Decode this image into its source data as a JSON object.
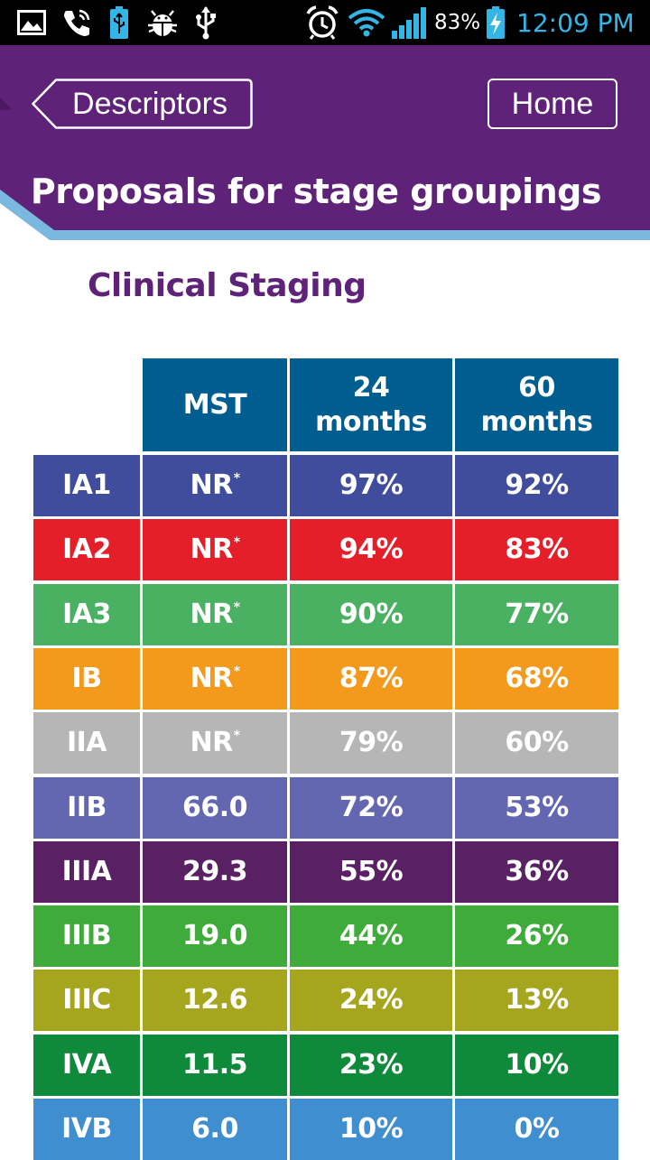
{
  "status_bar": {
    "icons": [
      "image-icon",
      "phone-icon",
      "battery-usb-icon",
      "android-debug-icon",
      "usb-icon",
      "alarm-icon",
      "wifi-icon",
      "signal-icon",
      "battery-charging-icon"
    ],
    "battery_percent": "83%",
    "time": "12:09 PM",
    "clock_color": "#33b5e5"
  },
  "header": {
    "back_label": "Descriptors",
    "home_label": "Home",
    "title": "Proposals for stage groupings",
    "bg_color": "#5e2278",
    "accent_color": "#7ab8e0"
  },
  "section": {
    "title": "Clinical Staging"
  },
  "table": {
    "columns": [
      "MST",
      "24 months",
      "60 months"
    ],
    "header_color": "#005d8f",
    "footnote_marker": "*",
    "rows": [
      {
        "stage": "IA1",
        "mst": "NR",
        "m24": "97%",
        "m60": "92%",
        "color": "#3f4d9c",
        "nr": true
      },
      {
        "stage": "IA2",
        "mst": "NR",
        "m24": "94%",
        "m60": "83%",
        "color": "#e41f2a",
        "nr": true
      },
      {
        "stage": "IA3",
        "mst": "NR",
        "m24": "90%",
        "m60": "77%",
        "color": "#4bb162",
        "nr": true
      },
      {
        "stage": "IB",
        "mst": "NR",
        "m24": "87%",
        "m60": "68%",
        "color": "#f39a1c",
        "nr": true
      },
      {
        "stage": "IIA",
        "mst": "NR",
        "m24": "79%",
        "m60": "60%",
        "color": "#b6b6b6",
        "nr": true
      },
      {
        "stage": "IIB",
        "mst": "66.0",
        "m24": "72%",
        "m60": "53%",
        "color": "#6366b0",
        "nr": false
      },
      {
        "stage": "IIIA",
        "mst": "29.3",
        "m24": "55%",
        "m60": "36%",
        "color": "#5a2064",
        "nr": false
      },
      {
        "stage": "IIIB",
        "mst": "19.0",
        "m24": "44%",
        "m60": "26%",
        "color": "#3fab3a",
        "nr": false
      },
      {
        "stage": "IIIC",
        "mst": "12.6",
        "m24": "24%",
        "m60": "13%",
        "color": "#a6a51e",
        "nr": false
      },
      {
        "stage": "IVA",
        "mst": "11.5",
        "m24": "23%",
        "m60": "10%",
        "color": "#0f8a3a",
        "nr": false
      },
      {
        "stage": "IVB",
        "mst": "6.0",
        "m24": "10%",
        "m60": "0%",
        "color": "#3e8ed0",
        "nr": false
      }
    ]
  }
}
